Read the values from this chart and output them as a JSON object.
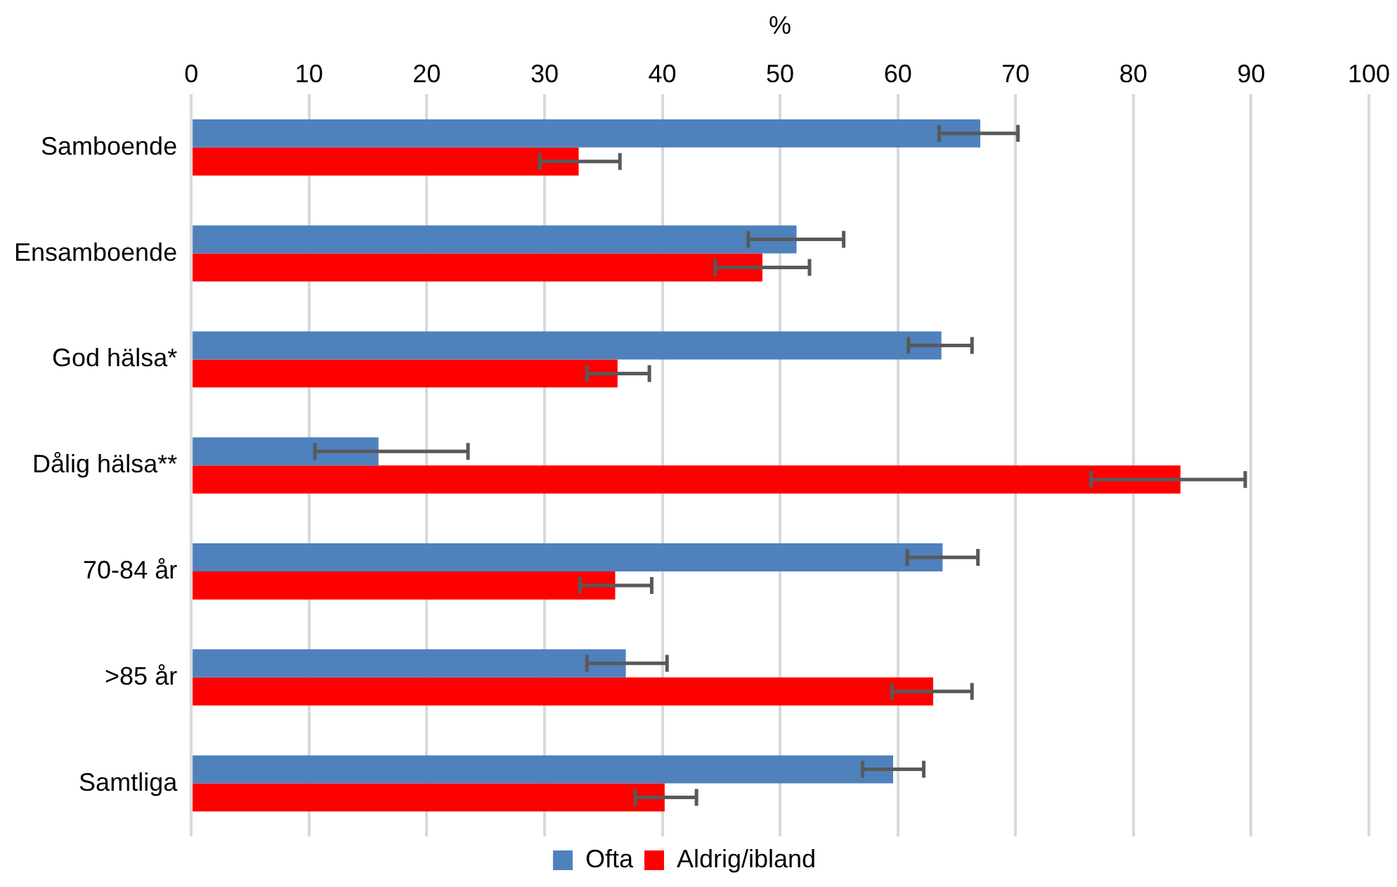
{
  "chart_data": {
    "type": "bar",
    "orientation": "horizontal",
    "xlabel": "%",
    "categories": [
      "Samboende",
      "Ensamboende",
      "God hälsa*",
      "Dålig hälsa**",
      "70-84 år",
      ">85 år",
      "Samtliga"
    ],
    "series": [
      {
        "name": "Ofta",
        "color": "#4f81bd",
        "values": [
          67,
          51.4,
          63.7,
          15.9,
          63.8,
          36.9,
          59.6
        ],
        "errors": [
          [
            63.5,
            70.2
          ],
          [
            47.3,
            55.4
          ],
          [
            60.9,
            66.3
          ],
          [
            10.5,
            23.5
          ],
          [
            60.8,
            66.8
          ],
          [
            33.6,
            40.4
          ],
          [
            57,
            62.2
          ]
        ]
      },
      {
        "name": "Aldrig/ibland",
        "color": "#ff0000",
        "values": [
          32.9,
          48.5,
          36.2,
          84,
          36,
          63,
          40.2
        ],
        "errors": [
          [
            29.6,
            36.4
          ],
          [
            44.5,
            52.5
          ],
          [
            33.6,
            38.9
          ],
          [
            76.4,
            89.5
          ],
          [
            33,
            39.1
          ],
          [
            59.5,
            66.3
          ],
          [
            37.7,
            42.9
          ]
        ]
      }
    ],
    "xlim": [
      0,
      100
    ],
    "xticks": [
      0,
      10,
      20,
      30,
      40,
      50,
      60,
      70,
      80,
      90,
      100
    ],
    "grid": "x",
    "legend": "bottom"
  }
}
